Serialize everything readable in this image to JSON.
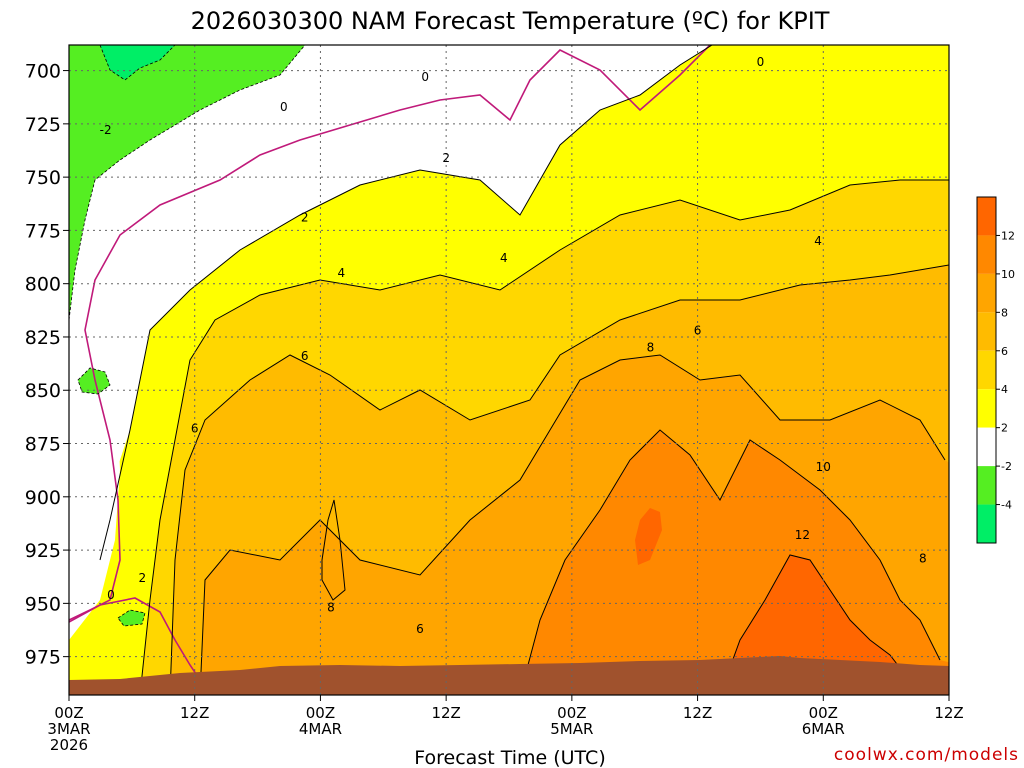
{
  "chart_data": {
    "type": "heatmap",
    "title": "2026030300 NAM Forecast Temperature (ºC) for KPIT",
    "xlabel": "Forecast Time (UTC)",
    "ylabel": "",
    "credit": "coolwx.com/models",
    "x_ticks": [
      {
        "hour": 0,
        "line1": "00Z",
        "line2": "3MAR",
        "line3": "2026"
      },
      {
        "hour": 12,
        "line1": "12Z",
        "line2": "",
        "line3": ""
      },
      {
        "hour": 24,
        "line1": "00Z",
        "line2": "4MAR",
        "line3": ""
      },
      {
        "hour": 36,
        "line1": "12Z",
        "line2": "",
        "line3": ""
      },
      {
        "hour": 48,
        "line1": "00Z",
        "line2": "5MAR",
        "line3": ""
      },
      {
        "hour": 60,
        "line1": "12Z",
        "line2": "",
        "line3": ""
      },
      {
        "hour": 72,
        "line1": "00Z",
        "line2": "6MAR",
        "line3": ""
      },
      {
        "hour": 84,
        "line1": "12Z",
        "line2": "",
        "line3": ""
      }
    ],
    "xlim": [
      0,
      84
    ],
    "y_ticks": [
      700,
      725,
      750,
      775,
      800,
      825,
      850,
      875,
      900,
      925,
      950,
      975
    ],
    "ylim": [
      688,
      993
    ],
    "y_axis_reversed": true,
    "grid": "dotted",
    "colorbar": {
      "labels": [
        "12",
        "10",
        "8",
        "6",
        "4",
        "2",
        "-2",
        "-4"
      ],
      "bins": [
        {
          "min": 12,
          "max": 14,
          "color": "#ff6600"
        },
        {
          "min": 10,
          "max": 12,
          "color": "#ff8800"
        },
        {
          "min": 8,
          "max": 10,
          "color": "#ffa500"
        },
        {
          "min": 6,
          "max": 8,
          "color": "#ffbb00"
        },
        {
          "min": 4,
          "max": 6,
          "color": "#ffd700"
        },
        {
          "min": 2,
          "max": 4,
          "color": "#ffff00"
        },
        {
          "min": -2,
          "max": 2,
          "color": "#ffffff"
        },
        {
          "min": -4,
          "max": -2,
          "color": "#55ee22"
        },
        {
          "min": -6,
          "max": -4,
          "color": "#00ee66"
        }
      ]
    },
    "ground_color": "#a0522d",
    "freezing_line_color": "#c01a7a",
    "isotherm_labels": [
      {
        "hour": 3.5,
        "p": 728,
        "text": "-2"
      },
      {
        "hour": 4,
        "p": 946,
        "text": "0"
      },
      {
        "hour": 20.5,
        "p": 717,
        "text": "0"
      },
      {
        "hour": 34,
        "p": 703,
        "text": "0"
      },
      {
        "hour": 66,
        "p": 696,
        "text": "0"
      },
      {
        "hour": 7,
        "p": 938,
        "text": "2"
      },
      {
        "hour": 22.5,
        "p": 769,
        "text": "2"
      },
      {
        "hour": 36,
        "p": 741,
        "text": "2"
      },
      {
        "hour": 26,
        "p": 795,
        "text": "4"
      },
      {
        "hour": 41.5,
        "p": 788,
        "text": "4"
      },
      {
        "hour": 71.5,
        "p": 780,
        "text": "4"
      },
      {
        "hour": 12,
        "p": 868,
        "text": "6"
      },
      {
        "hour": 22.5,
        "p": 834,
        "text": "6"
      },
      {
        "hour": 33.5,
        "p": 962,
        "text": "6"
      },
      {
        "hour": 60,
        "p": 822,
        "text": "6"
      },
      {
        "hour": 25,
        "p": 952,
        "text": "8"
      },
      {
        "hour": 55.5,
        "p": 830,
        "text": "8"
      },
      {
        "hour": 81.5,
        "p": 929,
        "text": "8"
      },
      {
        "hour": 72,
        "p": 886,
        "text": "10"
      },
      {
        "hour": 70,
        "p": 918,
        "text": "12"
      }
    ]
  }
}
